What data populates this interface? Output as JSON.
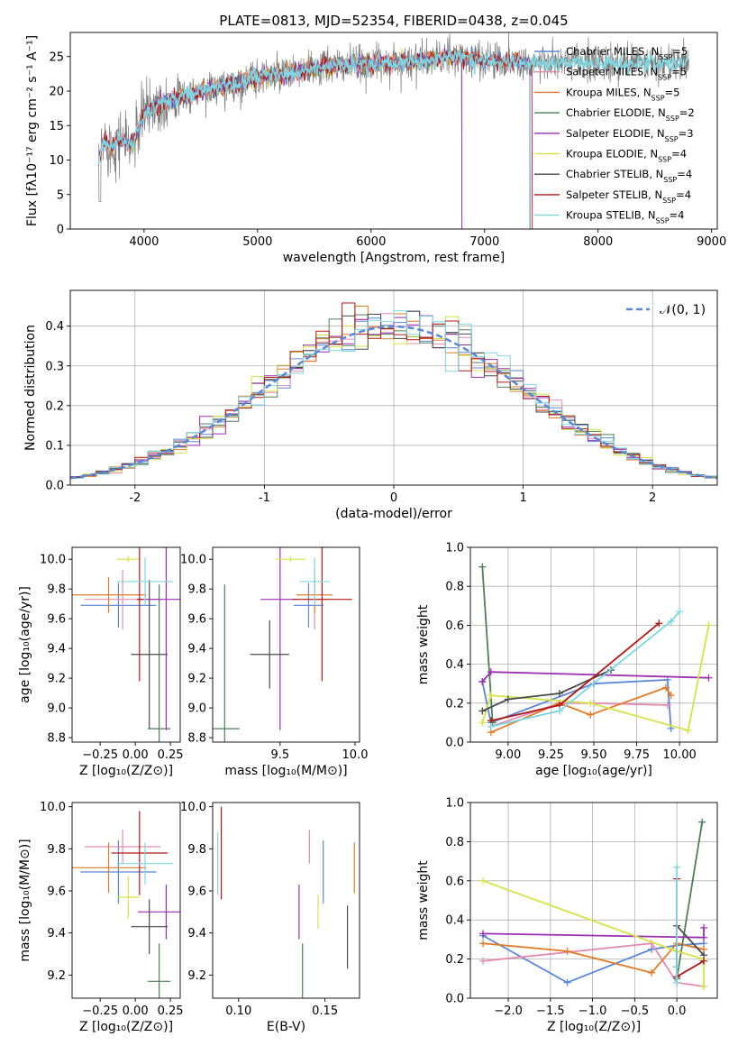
{
  "title": "PLATE=0813, MJD=52354, FIBERID=0438, z=0.045",
  "colors": {
    "Chabrier MILES": "#5b86d6",
    "Salpeter MILES": "#e38cb0",
    "Kroupa MILES": "#e07b2a",
    "Chabrier ELODIE": "#4f7f57",
    "Salpeter ELODIE": "#9a2fb0",
    "Kroupa ELODIE": "#d5e34a",
    "Chabrier STELIB": "#4a4a4a",
    "Salpeter STELIB": "#b01818",
    "Kroupa STELIB": "#7fd6e0",
    "normal": "#5b86d6"
  },
  "legend_spectrum": [
    {
      "name": "Chabrier MILES",
      "label": "Chabrier MILES, N",
      "sub": "SSP",
      "suffix": "=5"
    },
    {
      "name": "Salpeter MILES",
      "label": "Salpeter MILES, N",
      "sub": "SSP",
      "suffix": "=5"
    },
    {
      "name": "Kroupa MILES",
      "label": "Kroupa MILES, N",
      "sub": "SSP",
      "suffix": "=5"
    },
    {
      "name": "Chabrier ELODIE",
      "label": "Chabrier ELODIE, N",
      "sub": "SSP",
      "suffix": "=2"
    },
    {
      "name": "Salpeter ELODIE",
      "label": "Salpeter ELODIE, N",
      "sub": "SSP",
      "suffix": "=3"
    },
    {
      "name": "Kroupa ELODIE",
      "label": "Kroupa ELODIE, N",
      "sub": "SSP",
      "suffix": "=4"
    },
    {
      "name": "Chabrier STELIB",
      "label": "Chabrier STELIB, N",
      "sub": "SSP",
      "suffix": "=4"
    },
    {
      "name": "Salpeter STELIB",
      "label": "Salpeter STELIB, N",
      "sub": "SSP",
      "suffix": "=4"
    },
    {
      "name": "Kroupa STELIB",
      "label": "Kroupa STELIB, N",
      "sub": "SSP",
      "suffix": "=4"
    }
  ],
  "legend_normal": "𝒩(0, 1)",
  "chart_data": [
    {
      "id": "spectrum",
      "type": "line",
      "xlabel": "wavelength [Angstrom, rest frame]",
      "ylabel": "Flux [fλ10⁻¹⁷ erg cm⁻² s⁻¹ A⁻¹]",
      "xlim": [
        3350,
        9050
      ],
      "ylim": [
        0,
        28.5
      ],
      "xticks": [
        4000,
        5000,
        6000,
        7000,
        8000,
        9000
      ],
      "yticks": [
        0,
        5,
        10,
        15,
        20,
        25
      ],
      "data_range": [
        3600,
        8800
      ],
      "continuum": [
        [
          3600,
          10
        ],
        [
          3650,
          13
        ],
        [
          3700,
          12
        ],
        [
          3800,
          13
        ],
        [
          3900,
          12
        ],
        [
          4000,
          17
        ],
        [
          4100,
          18
        ],
        [
          4300,
          19
        ],
        [
          4500,
          20
        ],
        [
          4800,
          21
        ],
        [
          5000,
          22
        ],
        [
          5300,
          22.5
        ],
        [
          5600,
          23.5
        ],
        [
          6000,
          24
        ],
        [
          6500,
          24.5
        ],
        [
          6700,
          25
        ],
        [
          7000,
          24.5
        ],
        [
          7500,
          24
        ],
        [
          8000,
          24
        ],
        [
          8500,
          24
        ],
        [
          8800,
          24
        ]
      ],
      "model_cutoffs": [
        {
          "name": "Kroupa ELODIE",
          "xmin": 3900,
          "xmax": 6800
        },
        {
          "name": "Chabrier ELODIE",
          "xmin": 3900,
          "xmax": 6800
        },
        {
          "name": "Salpeter ELODIE",
          "xmin": 3900,
          "xmax": 6800
        },
        {
          "name": "Kroupa MILES",
          "xmin": 3600,
          "xmax": 7400
        },
        {
          "name": "Salpeter MILES",
          "xmin": 3600,
          "xmax": 7400
        },
        {
          "name": "Chabrier MILES",
          "xmin": 3600,
          "xmax": 7400
        },
        {
          "name": "Salpeter STELIB",
          "xmin": 3600,
          "xmax": 7420
        },
        {
          "name": "Kroupa STELIB",
          "xmin": 3600,
          "xmax": 8800
        }
      ]
    },
    {
      "id": "residuals",
      "type": "histogram",
      "xlabel": "(data-model)/error",
      "ylabel": "Normed distribution",
      "xlim": [
        -2.5,
        2.5
      ],
      "ylim": [
        0,
        0.49
      ],
      "xticks": [
        -2,
        -1,
        0,
        1,
        2
      ],
      "yticks": [
        0.0,
        0.1,
        0.2,
        0.3,
        0.4
      ],
      "bins": {
        "start": -2.5,
        "width": 0.1,
        "count": 50
      },
      "grid": true,
      "legend_position": "upper right"
    },
    {
      "id": "age_vs_Z",
      "type": "errorbar",
      "xlabel": "Z [log₁₀(Z/Z⊙)]",
      "ylabel": "age  [log₁₀(age/yr)]",
      "xlim": [
        -0.45,
        0.32
      ],
      "ylim": [
        8.77,
        10.08
      ],
      "xticks": [
        -0.25,
        0.0,
        0.25
      ],
      "xticklabels": [
        "−0.25",
        "0.00",
        "0.25"
      ],
      "yticks": [
        8.8,
        9.0,
        9.2,
        9.4,
        9.6,
        9.8,
        10.0
      ],
      "points": [
        {
          "name": "Chabrier MILES",
          "x": -0.12,
          "xerr": 0.27,
          "y": 9.69,
          "yerr": 0.15
        },
        {
          "name": "Salpeter MILES",
          "x": -0.09,
          "xerr": 0.27,
          "y": 9.73,
          "yerr": 0.2
        },
        {
          "name": "Kroupa MILES",
          "x": -0.19,
          "xerr": 0.27,
          "y": 9.76,
          "yerr": 0.12
        },
        {
          "name": "Chabrier ELODIE",
          "x": 0.17,
          "xerr": 0.08,
          "y": 8.86,
          "yerr": 0.97
        },
        {
          "name": "Salpeter ELODIE",
          "x": 0.22,
          "xerr": 0.2,
          "y": 9.73,
          "yerr": 0.88
        },
        {
          "name": "Kroupa ELODIE",
          "x": -0.05,
          "xerr": 0.08,
          "y": 10.0,
          "yerr": 0.02
        },
        {
          "name": "Chabrier STELIB",
          "x": 0.1,
          "xerr": 0.13,
          "y": 9.36,
          "yerr": 0.5
        },
        {
          "name": "Salpeter STELIB",
          "x": 0.03,
          "xerr": 0.02,
          "y": 9.73,
          "yerr": 0.55
        },
        {
          "name": "Kroupa STELIB",
          "x": 0.07,
          "xerr": 0.2,
          "y": 9.85,
          "yerr": 0.16
        }
      ]
    },
    {
      "id": "age_vs_mass",
      "type": "errorbar",
      "xlabel": "mass [log₁₀(M/M⊙)]",
      "ylabel": "",
      "xlim": [
        9.05,
        10.03
      ],
      "ylim": [
        8.77,
        10.08
      ],
      "xticks": [
        9.5,
        10.0
      ],
      "xticklabels": [
        "9.5",
        "10.0"
      ],
      "yticks": [
        8.8,
        9.0,
        9.2,
        9.4,
        9.6,
        9.8,
        10.0
      ],
      "points": [
        {
          "name": "Chabrier MILES",
          "x": 9.69,
          "xerr": 0.1,
          "y": 9.69,
          "yerr": 0.15
        },
        {
          "name": "Salpeter MILES",
          "x": 9.73,
          "xerr": 0.08,
          "y": 9.73,
          "yerr": 0.2
        },
        {
          "name": "Kroupa MILES",
          "x": 9.73,
          "xerr": 0.12,
          "y": 9.76,
          "yerr": 0.12
        },
        {
          "name": "Chabrier ELODIE",
          "x": 9.13,
          "xerr": 0.1,
          "y": 8.86,
          "yerr": 0.97
        },
        {
          "name": "Salpeter ELODIE",
          "x": 9.5,
          "xerr": 0.13,
          "y": 9.73,
          "yerr": 0.88
        },
        {
          "name": "Kroupa ELODIE",
          "x": 9.57,
          "xerr": 0.1,
          "y": 10.0,
          "yerr": 0.02
        },
        {
          "name": "Chabrier STELIB",
          "x": 9.43,
          "xerr": 0.13,
          "y": 9.36,
          "yerr": 0.23
        },
        {
          "name": "Salpeter STELIB",
          "x": 9.78,
          "xerr": 0.2,
          "y": 9.73,
          "yerr": 0.55
        },
        {
          "name": "Kroupa STELIB",
          "x": 9.73,
          "xerr": 0.1,
          "y": 9.85,
          "yerr": 0.16
        }
      ]
    },
    {
      "id": "mass_weight_vs_age",
      "type": "line",
      "xlabel": "age  [log₁₀(age/yr)]",
      "ylabel": "mass weight",
      "xlim": [
        8.78,
        10.22
      ],
      "ylim": [
        0,
        1.0
      ],
      "xticks": [
        9.0,
        9.25,
        9.5,
        9.75,
        10.0
      ],
      "xticklabels": [
        "9.00",
        "9.25",
        "9.50",
        "9.75",
        "10.00"
      ],
      "yticks": [
        0.0,
        0.2,
        0.4,
        0.6,
        0.8,
        1.0
      ],
      "grid": true,
      "series": [
        {
          "name": "Chabrier MILES",
          "x": [
            8.85,
            8.9,
            9.5,
            9.93,
            9.95
          ],
          "y": [
            0.31,
            0.1,
            0.3,
            0.32,
            0.07
          ]
        },
        {
          "name": "Salpeter MILES",
          "x": [
            8.9,
            9.3,
            9.5,
            9.93
          ],
          "y": [
            0.08,
            0.2,
            0.2,
            0.19
          ]
        },
        {
          "name": "Kroupa MILES",
          "x": [
            8.9,
            9.3,
            9.48,
            9.92,
            9.95
          ],
          "y": [
            0.05,
            0.2,
            0.14,
            0.28,
            0.24
          ]
        },
        {
          "name": "Chabrier ELODIE",
          "x": [
            8.85,
            8.91
          ],
          "y": [
            0.9,
            0.1
          ]
        },
        {
          "name": "Salpeter ELODIE",
          "x": [
            8.85,
            8.9,
            10.17
          ],
          "y": [
            0.31,
            0.36,
            0.33
          ]
        },
        {
          "name": "Kroupa ELODIE",
          "x": [
            8.85,
            8.9,
            9.48,
            10.05,
            10.17
          ],
          "y": [
            0.1,
            0.24,
            0.2,
            0.06,
            0.6
          ]
        },
        {
          "name": "Chabrier STELIB",
          "x": [
            8.85,
            9.0,
            9.3,
            9.6
          ],
          "y": [
            0.16,
            0.22,
            0.25,
            0.37
          ]
        },
        {
          "name": "Salpeter STELIB",
          "x": [
            8.9,
            9.3,
            9.88
          ],
          "y": [
            0.11,
            0.19,
            0.61
          ]
        },
        {
          "name": "Kroupa STELIB",
          "x": [
            8.9,
            9.3,
            9.95,
            10.0
          ],
          "y": [
            0.08,
            0.16,
            0.62,
            0.67
          ]
        }
      ]
    },
    {
      "id": "mass_vs_Z",
      "type": "errorbar",
      "xlabel": "Z [log₁₀(Z/Z⊙)]",
      "ylabel": "mass [log₁₀(M/M⊙)]",
      "xlim": [
        -0.45,
        0.32
      ],
      "ylim": [
        9.09,
        10.02
      ],
      "xticks": [
        -0.25,
        0.0,
        0.25
      ],
      "xticklabels": [
        "−0.25",
        "0.00",
        "0.25"
      ],
      "yticks": [
        9.2,
        9.4,
        9.6,
        9.8,
        10.0
      ],
      "points": [
        {
          "name": "Chabrier MILES",
          "x": -0.12,
          "xerr": 0.27,
          "y": 9.69,
          "yerr": 0.15
        },
        {
          "name": "Salpeter MILES",
          "x": -0.09,
          "xerr": 0.27,
          "y": 9.81,
          "yerr": 0.08
        },
        {
          "name": "Kroupa MILES",
          "x": -0.19,
          "xerr": 0.27,
          "y": 9.71,
          "yerr": 0.12
        },
        {
          "name": "Chabrier ELODIE",
          "x": 0.17,
          "xerr": 0.08,
          "y": 9.17,
          "yerr": 0.18
        },
        {
          "name": "Salpeter ELODIE",
          "x": 0.22,
          "xerr": 0.2,
          "y": 9.5,
          "yerr": 0.13
        },
        {
          "name": "Kroupa ELODIE",
          "x": -0.05,
          "xerr": 0.08,
          "y": 9.57,
          "yerr": 0.1
        },
        {
          "name": "Chabrier STELIB",
          "x": 0.1,
          "xerr": 0.13,
          "y": 9.43,
          "yerr": 0.13
        },
        {
          "name": "Salpeter STELIB",
          "x": 0.03,
          "xerr": 0.2,
          "y": 9.78,
          "yerr": 0.2
        },
        {
          "name": "Kroupa STELIB",
          "x": 0.07,
          "xerr": 0.2,
          "y": 9.73,
          "yerr": 0.1
        }
      ]
    },
    {
      "id": "mass_vs_EBV",
      "type": "errorbar",
      "xlabel": "E(B-V)",
      "ylabel": "",
      "xlim": [
        0.085,
        0.17
      ],
      "ylim": [
        9.09,
        10.02
      ],
      "xticks": [
        0.1,
        0.15
      ],
      "xticklabels": [
        "0.10",
        "0.15"
      ],
      "yticks": [
        9.2,
        9.4,
        9.6,
        9.8,
        10.0
      ],
      "points": [
        {
          "name": "Chabrier MILES",
          "x": 0.149,
          "xerr": 0,
          "y": 9.69,
          "yerr": 0.15
        },
        {
          "name": "Salpeter MILES",
          "x": 0.141,
          "xerr": 0,
          "y": 9.81,
          "yerr": 0.08
        },
        {
          "name": "Kroupa MILES",
          "x": 0.167,
          "xerr": 0,
          "y": 9.71,
          "yerr": 0.12
        },
        {
          "name": "Chabrier ELODIE",
          "x": 0.137,
          "xerr": 0,
          "y": 9.17,
          "yerr": 0.18
        },
        {
          "name": "Salpeter ELODIE",
          "x": 0.135,
          "xerr": 0,
          "y": 9.5,
          "yerr": 0.13
        },
        {
          "name": "Kroupa ELODIE",
          "x": 0.146,
          "xerr": 0,
          "y": 9.5,
          "yerr": 0.08
        },
        {
          "name": "Chabrier STELIB",
          "x": 0.163,
          "xerr": 0,
          "y": 9.38,
          "yerr": 0.15
        },
        {
          "name": "Salpeter STELIB",
          "x": 0.09,
          "xerr": 0,
          "y": 9.78,
          "yerr": 0.22
        },
        {
          "name": "Kroupa STELIB",
          "x": 0.088,
          "xerr": 0,
          "y": 9.73,
          "yerr": 0.15
        }
      ]
    },
    {
      "id": "mass_weight_vs_Z",
      "type": "line",
      "xlabel": "Z [log₁₀(Z/Z⊙)]",
      "ylabel": "mass weight",
      "xlim": [
        -2.45,
        0.48
      ],
      "ylim": [
        0,
        1.0
      ],
      "xticks": [
        -2.0,
        -1.5,
        -1.0,
        -0.5,
        0.0
      ],
      "xticklabels": [
        "−2.0",
        "−1.5",
        "−1.0",
        "−0.5",
        "0.0"
      ],
      "yticks": [
        0.0,
        0.2,
        0.4,
        0.6,
        0.8,
        1.0
      ],
      "grid": true,
      "series": [
        {
          "name": "Chabrier MILES",
          "x": [
            -2.3,
            -1.3,
            -0.3,
            0.0,
            0.32
          ],
          "y": [
            0.32,
            0.08,
            0.25,
            0.27,
            0.28
          ]
        },
        {
          "name": "Salpeter MILES",
          "x": [
            -2.3,
            -0.3,
            0.0,
            0.32
          ],
          "y": [
            0.19,
            0.28,
            0.08,
            0.06
          ]
        },
        {
          "name": "Kroupa MILES",
          "x": [
            -2.3,
            -1.3,
            -0.3,
            0.0,
            0.32
          ],
          "y": [
            0.28,
            0.24,
            0.13,
            0.28,
            0.25
          ]
        },
        {
          "name": "Chabrier ELODIE",
          "x": [
            0.0,
            0.3
          ],
          "y": [
            0.1,
            0.9
          ]
        },
        {
          "name": "Salpeter ELODIE",
          "x": [
            -2.3,
            0.32,
            0.32
          ],
          "y": [
            0.33,
            0.31,
            0.36
          ]
        },
        {
          "name": "Kroupa ELODIE",
          "x": [
            -2.3,
            0.0,
            0.32,
            0.32
          ],
          "y": [
            0.6,
            0.24,
            0.2,
            0.06
          ]
        },
        {
          "name": "Chabrier STELIB",
          "x": [
            0.0,
            0.0,
            0.32
          ],
          "y": [
            0.16,
            0.37,
            0.22
          ]
        },
        {
          "name": "Salpeter STELIB",
          "x": [
            0.0,
            0.0,
            0.32
          ],
          "y": [
            0.61,
            0.11,
            0.19
          ]
        },
        {
          "name": "Kroupa STELIB",
          "x": [
            0.0,
            0.0,
            0.0
          ],
          "y": [
            0.67,
            0.08,
            0.16
          ]
        }
      ]
    }
  ]
}
